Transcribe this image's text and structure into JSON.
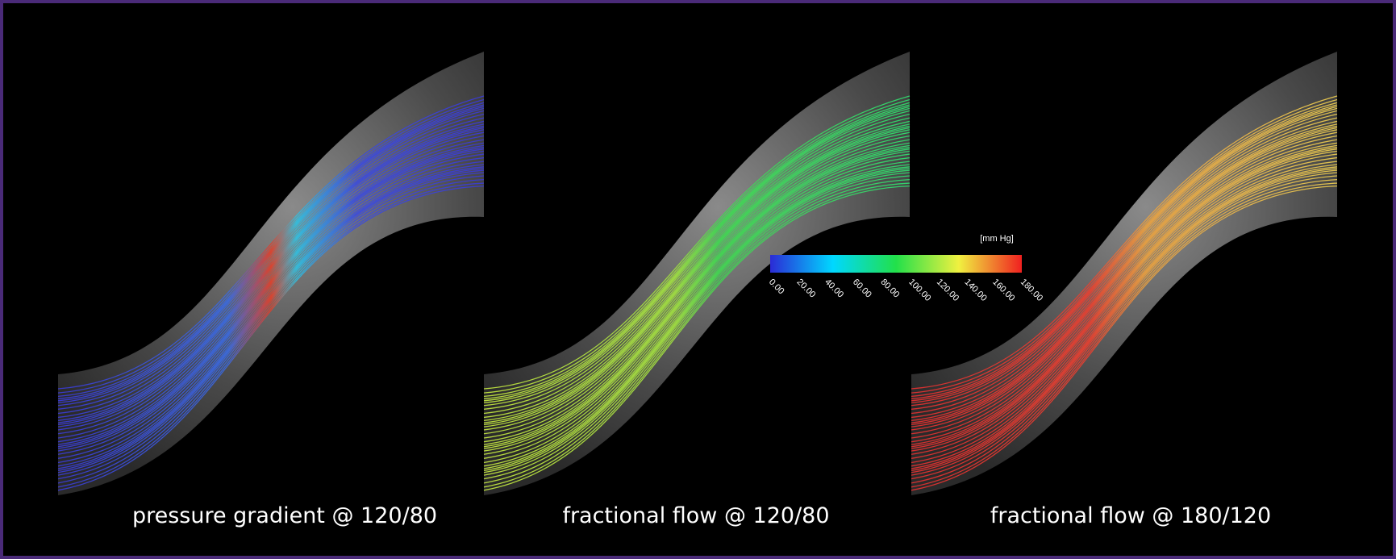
{
  "panels": [
    {
      "caption": "pressure gradient @ 120/80"
    },
    {
      "caption": "fractional flow @ 120/80"
    },
    {
      "caption": "fractional flow @ 180/120"
    }
  ],
  "colorbar": {
    "unit": "[mm Hg]",
    "ticks": [
      "0.00",
      "20.00",
      "40.00",
      "60.00",
      "80.00",
      "100.00",
      "120.00",
      "140.00",
      "160.00",
      "180.00"
    ]
  }
}
